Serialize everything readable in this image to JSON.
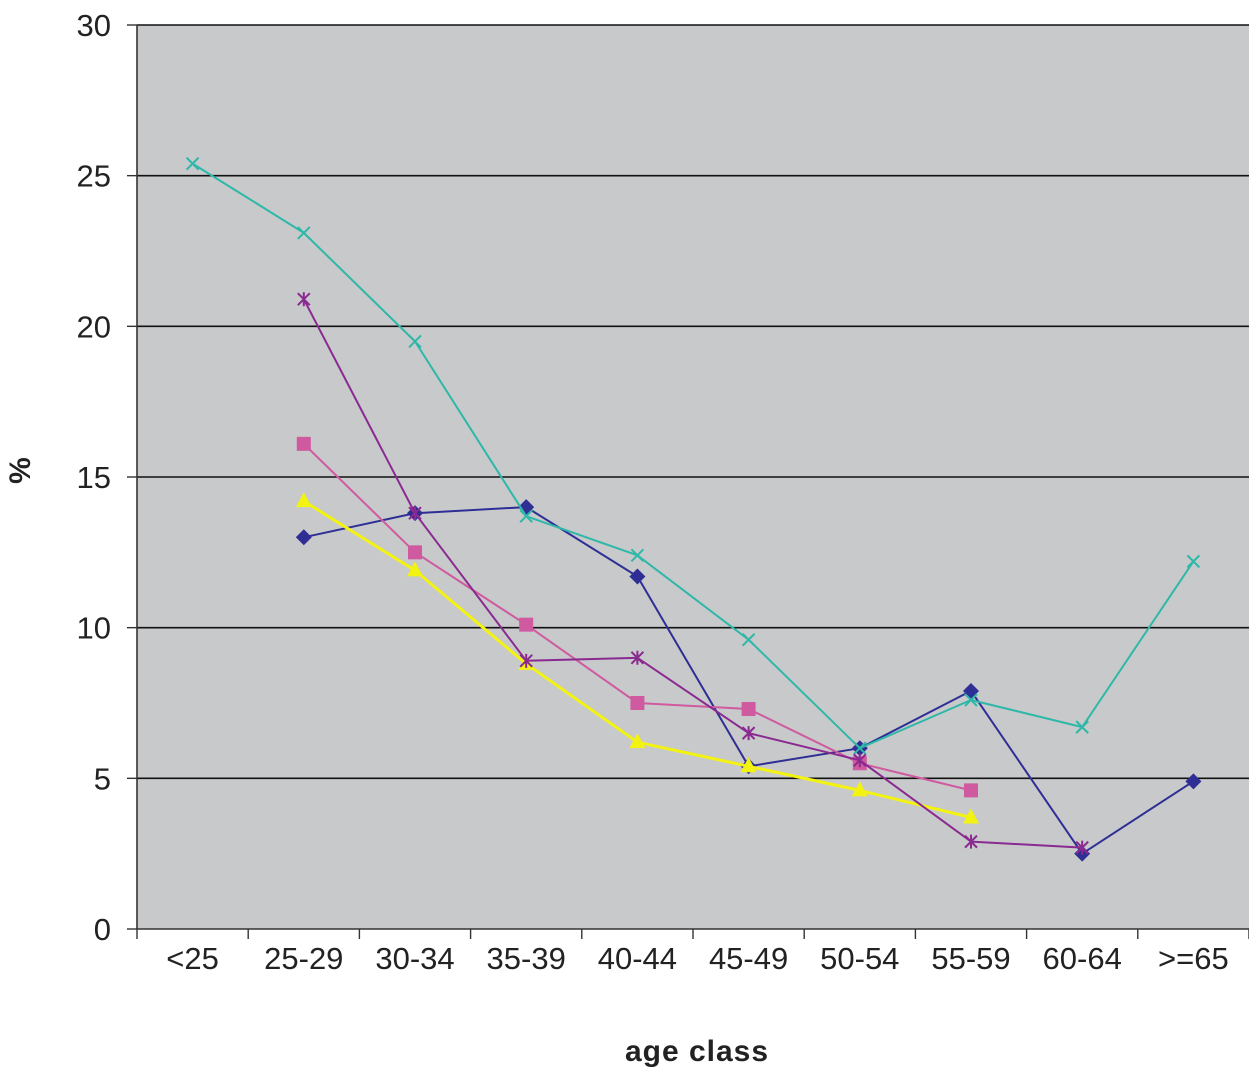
{
  "chart_data": {
    "type": "line",
    "title": "",
    "xlabel": "age class",
    "ylabel": "%",
    "ylim": [
      0,
      30
    ],
    "yticks": [
      0,
      5,
      10,
      15,
      20,
      25,
      30
    ],
    "grid": "horizontal",
    "background": "#c8c9cb",
    "categories": [
      "<25",
      "25-29",
      "30-34",
      "35-39",
      "40-44",
      "45-49",
      "50-54",
      "55-59",
      "60-64",
      ">=65"
    ],
    "series": [
      {
        "color": "#2e2e95",
        "marker": "diamond",
        "values": [
          null,
          13.0,
          13.8,
          14.0,
          11.7,
          5.4,
          6.0,
          7.9,
          2.5,
          4.9
        ]
      },
      {
        "color": "#d05aa0",
        "marker": "square",
        "values": [
          null,
          16.1,
          12.5,
          10.1,
          7.5,
          7.3,
          5.5,
          4.6,
          null,
          null
        ]
      },
      {
        "color": "#f3f312",
        "marker": "triangle",
        "values": [
          null,
          14.2,
          11.9,
          8.8,
          6.2,
          5.4,
          4.6,
          3.7,
          null,
          null
        ]
      },
      {
        "color": "#2eb8a8",
        "marker": "x",
        "values": [
          25.4,
          23.1,
          19.5,
          13.7,
          12.4,
          9.6,
          6.0,
          7.6,
          6.7,
          12.2
        ]
      },
      {
        "color": "#8a2a90",
        "marker": "star",
        "values": [
          null,
          20.9,
          13.8,
          8.9,
          9.0,
          6.5,
          5.6,
          2.9,
          2.7,
          null
        ]
      }
    ]
  }
}
